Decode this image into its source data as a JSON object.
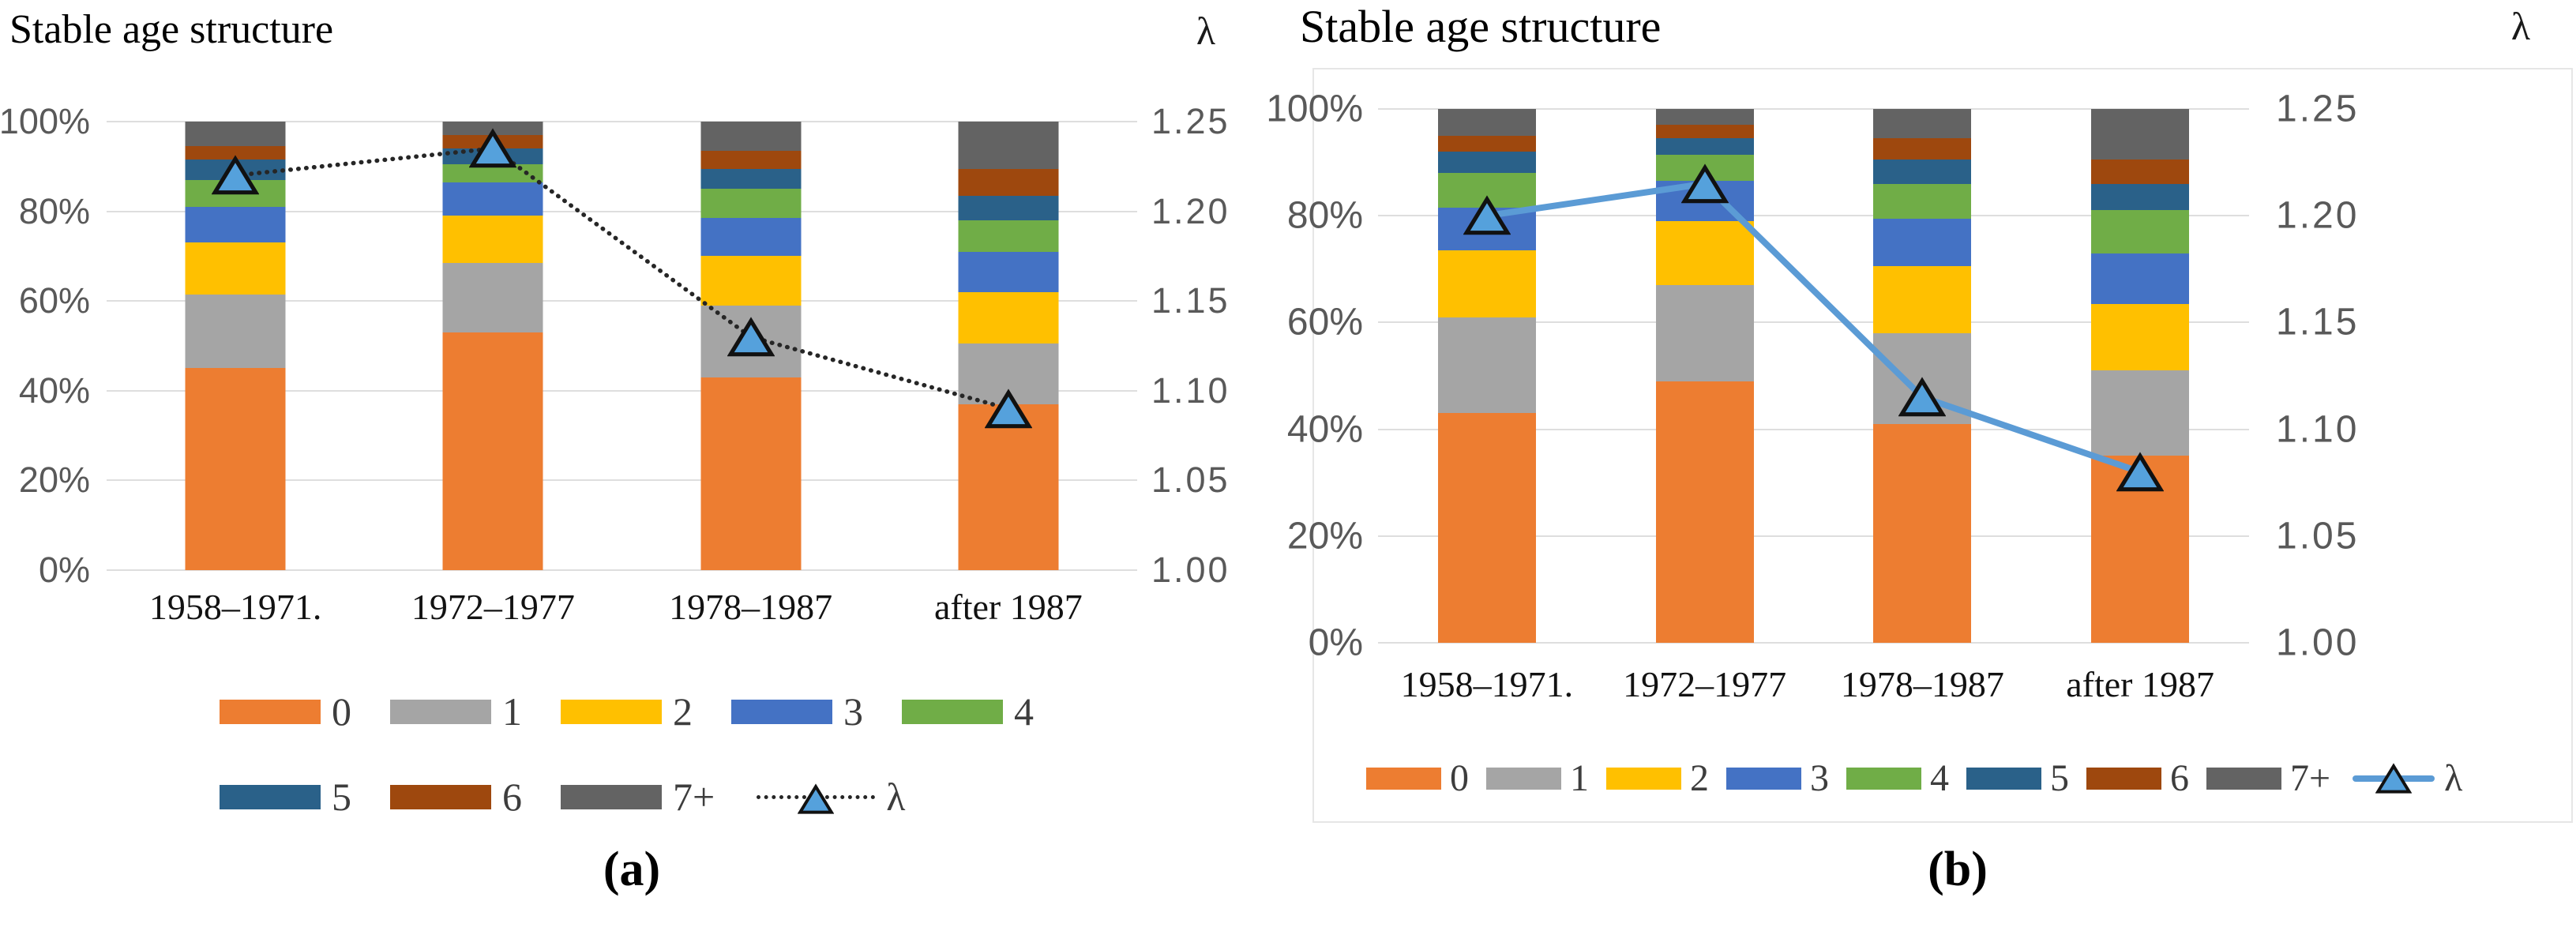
{
  "figure": {
    "type_note": "two-panel stacked bar + lambda line figure"
  },
  "colors": {
    "series": {
      "0": "#ED7D31",
      "1": "#A5A5A5",
      "2": "#FFC000",
      "3": "#4472C4",
      "4": "#70AD47",
      "5": "#2A6189",
      "6": "#9E480E",
      "7+": "#636363"
    },
    "gridline": "#DEDEDE",
    "axis_text": "#595959",
    "lambda_line_a": "#262626",
    "lambda_line_b": "#5B9BD5",
    "lambda_marker_fill": "#55A1DC",
    "lambda_marker_stroke": "#111111"
  },
  "chart_data": [
    {
      "id": "a",
      "type": "stacked-bar-line",
      "title": "Stable age structure",
      "secondary_axis_title": "λ",
      "caption": "(a)",
      "categories": [
        "1958–1971.",
        "1972–1977",
        "1978–1987",
        "after 1987"
      ],
      "y_axis": {
        "ticks": [
          "100%",
          "80%",
          "60%",
          "40%",
          "20%",
          "0%"
        ],
        "min": 0,
        "max": 100,
        "grid": true
      },
      "y2_axis": {
        "ticks": [
          "1.25",
          "1.20",
          "1.15",
          "1.10",
          "1.05",
          "1.00"
        ],
        "min": 1.0,
        "max": 1.25
      },
      "series": [
        {
          "name": "0",
          "values": [
            45,
            53,
            43,
            37
          ]
        },
        {
          "name": "1",
          "values": [
            16.5,
            15.5,
            16,
            13.5
          ]
        },
        {
          "name": "2",
          "values": [
            11.5,
            10.5,
            11,
            11.5
          ]
        },
        {
          "name": "3",
          "values": [
            8,
            7.5,
            8.5,
            9
          ]
        },
        {
          "name": "4",
          "values": [
            6,
            4,
            6.5,
            7
          ]
        },
        {
          "name": "5",
          "values": [
            4.5,
            3.5,
            4.5,
            5.5
          ]
        },
        {
          "name": "6",
          "values": [
            3,
            3,
            4,
            6
          ]
        },
        {
          "name": "7+",
          "values": [
            5.5,
            3,
            6.5,
            10.5
          ]
        }
      ],
      "lambda": {
        "name": "λ",
        "values": [
          1.22,
          1.235,
          1.13,
          1.09
        ],
        "line_style": "dotted"
      },
      "legend_rows": [
        [
          "0",
          "1",
          "2",
          "3",
          "4"
        ],
        [
          "5",
          "6",
          "7+",
          "λ"
        ]
      ]
    },
    {
      "id": "b",
      "type": "stacked-bar-line",
      "title": "Stable age structure",
      "secondary_axis_title": "λ",
      "caption": "(b)",
      "categories": [
        "1958–1971.",
        "1972–1977",
        "1978–1987",
        "after 1987"
      ],
      "y_axis": {
        "ticks": [
          "100%",
          "80%",
          "60%",
          "40%",
          "20%",
          "0%"
        ],
        "min": 0,
        "max": 100,
        "grid": true
      },
      "y2_axis": {
        "ticks": [
          "1.25",
          "1.20",
          "1.15",
          "1.10",
          "1.05",
          "1.00"
        ],
        "min": 1.0,
        "max": 1.25
      },
      "series": [
        {
          "name": "0",
          "values": [
            43,
            49,
            41,
            35
          ]
        },
        {
          "name": "1",
          "values": [
            18,
            18,
            17,
            16
          ]
        },
        {
          "name": "2",
          "values": [
            12.5,
            12,
            12.5,
            12.5
          ]
        },
        {
          "name": "3",
          "values": [
            8,
            7.5,
            9,
            9.5
          ]
        },
        {
          "name": "4",
          "values": [
            6.5,
            5,
            6.5,
            8
          ]
        },
        {
          "name": "5",
          "values": [
            4,
            3,
            4.5,
            5
          ]
        },
        {
          "name": "6",
          "values": [
            3,
            2.5,
            4,
            4.5
          ]
        },
        {
          "name": "7+",
          "values": [
            5,
            3,
            5.5,
            9.5
          ]
        }
      ],
      "lambda": {
        "name": "λ",
        "values": [
          1.2,
          1.215,
          1.115,
          1.08
        ],
        "line_style": "solid"
      },
      "legend_rows": [
        [
          "0",
          "1",
          "2",
          "3",
          "4",
          "5",
          "6",
          "7+",
          "λ"
        ]
      ]
    }
  ]
}
